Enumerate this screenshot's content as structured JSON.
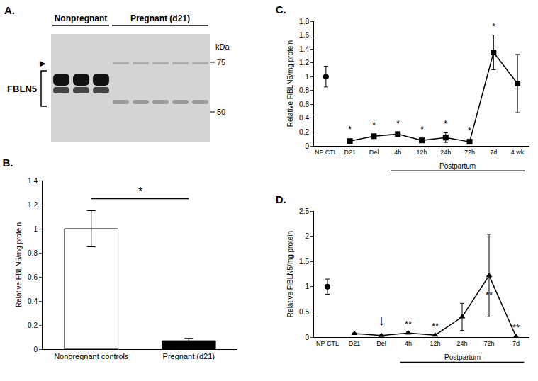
{
  "blot": {
    "label": "A.",
    "groups": [
      {
        "text": "Nonpregnant",
        "lanes": 3
      },
      {
        "text": "Pregnant (d21)",
        "lanes": 5
      }
    ],
    "band_label": "FBLN5",
    "unit": "kDa",
    "markers": [
      75,
      50
    ],
    "arrowhead": "▶"
  },
  "chart_data": [
    {
      "type": "bar",
      "title": "B.",
      "categories": [
        "Nonpregnant controls",
        "Pregnant (d21)"
      ],
      "values": [
        1.0,
        0.07
      ],
      "errors": [
        0.15,
        0.02
      ],
      "colors": [
        "#ffffff",
        "#000000"
      ],
      "y_label": "Relative FBLN5/mg protein",
      "ylim": [
        0,
        1.4
      ],
      "yticks": [
        0,
        0.2,
        0.4,
        0.6,
        0.8,
        1,
        1.2,
        1.4
      ],
      "annotations": [
        {
          "text": "*",
          "from": "Nonpregnant controls",
          "to": "Pregnant (d21)",
          "y": 1.25
        }
      ]
    },
    {
      "type": "line",
      "title": "C.",
      "categories": [
        "NP CTL",
        "D21",
        "Del",
        "4h",
        "12h",
        "24h",
        "72h",
        "7d",
        "4 wk"
      ],
      "series": [
        {
          "color": "#000000",
          "marker": "circle",
          "line_style": "none",
          "values": [
            1.0,
            null,
            null,
            null,
            null,
            null,
            null,
            null,
            null
          ],
          "errors": [
            0.15,
            null,
            null,
            null,
            null,
            null,
            null,
            null,
            null
          ]
        },
        {
          "color": "#000000",
          "marker": "square",
          "line_style": "solid",
          "values": [
            null,
            0.07,
            0.14,
            0.17,
            0.08,
            0.12,
            0.06,
            1.35,
            0.9
          ],
          "errors": [
            null,
            0.01,
            0.02,
            0.01,
            0.01,
            0.07,
            0.01,
            0.25,
            0.42
          ]
        }
      ],
      "y_label": "Relative FiBLN5/mg protein",
      "ylim": [
        0,
        1.8
      ],
      "yticks": [
        0,
        0.2,
        0.4,
        0.6,
        0.8,
        1,
        1.2,
        1.4,
        1.6,
        1.8
      ],
      "annotations": [
        {
          "text": "*",
          "x": "D21",
          "y": 0.14
        },
        {
          "text": "*",
          "x": "Del",
          "y": 0.2
        },
        {
          "text": "*",
          "x": "4h",
          "y": 0.23
        },
        {
          "text": "*",
          "x": "12h",
          "y": 0.14
        },
        {
          "text": "*",
          "x": "24h",
          "y": 0.22
        },
        {
          "text": "*",
          "x": "72h",
          "y": 0.12
        },
        {
          "text": "*",
          "x": "7d",
          "y": 1.63
        }
      ],
      "span": {
        "text": "Postpartum",
        "from": "4h",
        "to": "4 wk"
      }
    },
    {
      "type": "line",
      "title": "D.",
      "categories": [
        "NP CTL",
        "D21",
        "Del",
        "4h",
        "12h",
        "24h",
        "72h",
        "7d"
      ],
      "series": [
        {
          "color": "#000000",
          "marker": "circle",
          "line_style": "none",
          "values": [
            1.0,
            null,
            null,
            null,
            null,
            null,
            null,
            null
          ],
          "errors": [
            0.15,
            null,
            null,
            null,
            null,
            null,
            null,
            null
          ]
        },
        {
          "color": "#000000",
          "marker": "triangle",
          "line_style": "solid",
          "values": [
            null,
            0.07,
            0.03,
            0.08,
            0.04,
            0.4,
            1.22,
            0.01
          ],
          "errors": [
            null,
            0.01,
            0.01,
            0.02,
            0.01,
            0.27,
            0.82,
            null
          ]
        }
      ],
      "y_label": "Relative FiBLN5/mg protein",
      "ylim": [
        0,
        2.5
      ],
      "yticks": [
        0,
        0.5,
        1,
        1.5,
        2,
        2.5
      ],
      "annotations": [
        {
          "text": "↓",
          "x": "Del",
          "y": 0.15
        },
        {
          "text": "**",
          "x": "4h",
          "y": 0.12
        },
        {
          "text": "**",
          "x": "12h",
          "y": 0.08
        },
        {
          "text": "**",
          "x": "72h",
          "y": 0.7
        },
        {
          "text": "**",
          "x": "7d",
          "y": 0.05
        }
      ],
      "span": {
        "text": "Postpartum",
        "from": "4h",
        "to": "7d"
      }
    }
  ]
}
